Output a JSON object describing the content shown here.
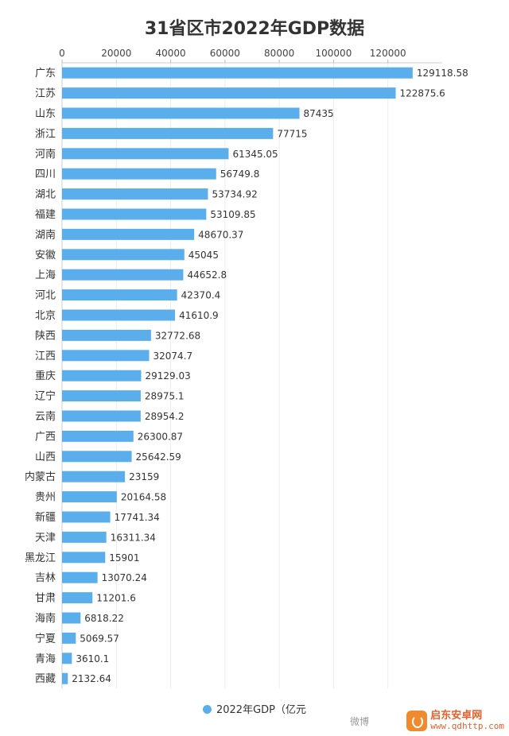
{
  "chart_data": {
    "type": "bar",
    "orientation": "horizontal",
    "title": "31省区市2022年GDP数据",
    "xlim": [
      0,
      140000
    ],
    "x_ticks": [
      "0",
      "20000",
      "40000",
      "60000",
      "80000",
      "100000",
      "120000"
    ],
    "x_tick_values": [
      0,
      20000,
      40000,
      60000,
      80000,
      100000,
      120000
    ],
    "axis_position": "top",
    "legend_position": "bottom",
    "bar_color": "#5AAEEB",
    "categories": [
      "广东",
      "江苏",
      "山东",
      "浙江",
      "河南",
      "四川",
      "湖北",
      "福建",
      "湖南",
      "安徽",
      "上海",
      "河北",
      "北京",
      "陕西",
      "江西",
      "重庆",
      "辽宁",
      "云南",
      "广西",
      "山西",
      "内蒙古",
      "贵州",
      "新疆",
      "天津",
      "黑龙江",
      "吉林",
      "甘肃",
      "海南",
      "宁夏",
      "青海",
      "西藏"
    ],
    "values": [
      129118.58,
      122875.6,
      87435,
      77715,
      61345.05,
      56749.8,
      53734.92,
      53109.85,
      48670.37,
      45045,
      44652.8,
      42370.4,
      41610.9,
      32772.68,
      32074.7,
      29129.03,
      28975.1,
      28954.2,
      26300.87,
      25642.59,
      23159,
      20164.58,
      17741.34,
      16311.34,
      15901,
      13070.24,
      11201.6,
      6818.22,
      5069.57,
      3610.1,
      2132.64
    ],
    "value_labels": [
      "129118.58",
      "122875.6",
      "87435",
      "77715",
      "61345.05",
      "56749.8",
      "53734.92",
      "53109.85",
      "48670.37",
      "45045",
      "44652.8",
      "42370.4",
      "41610.9",
      "32772.68",
      "32074.7",
      "29129.03",
      "28975.1",
      "28954.2",
      "26300.87",
      "25642.59",
      "23159",
      "20164.58",
      "17741.34",
      "16311.34",
      "15901",
      "13070.24",
      "11201.6",
      "6818.22",
      "5069.57",
      "3610.1",
      "2132.64"
    ],
    "series": [
      {
        "name": "2022年GDP（亿元",
        "color": "#5AAEEB"
      }
    ]
  },
  "watermark": {
    "weibo": "微博",
    "name": "启东安卓网",
    "url": "www.qdhttp.com"
  }
}
